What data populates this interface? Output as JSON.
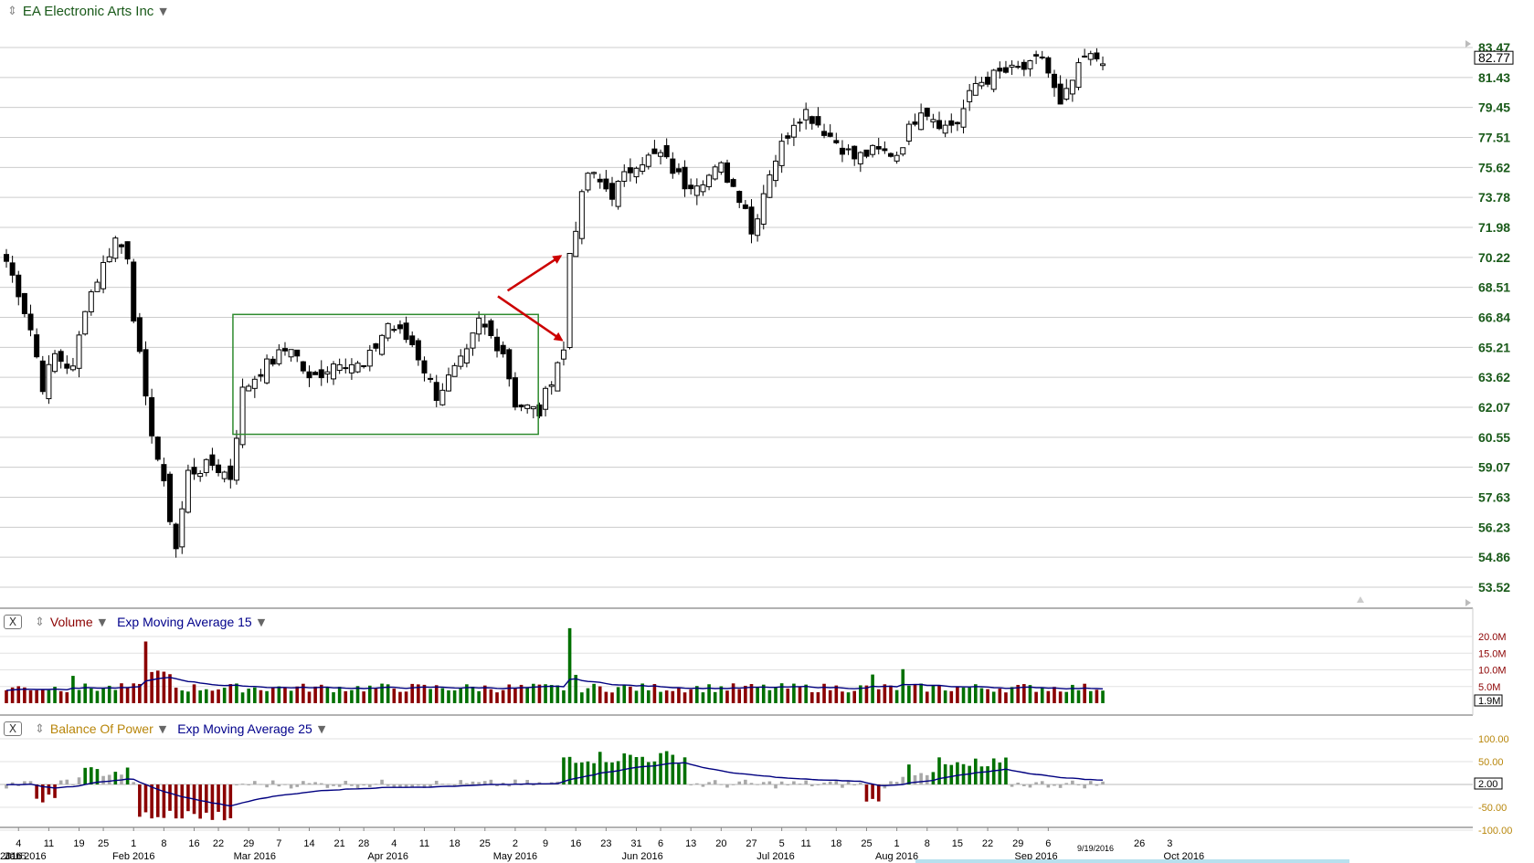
{
  "header": {
    "title": "EA Electronic Arts Inc"
  },
  "panels": {
    "volume": {
      "name": "Volume",
      "ema_label": "Exp Moving Average 15"
    },
    "bop": {
      "name": "Balance Of Power",
      "ema_label": "Exp Moving Average 25"
    }
  },
  "colors": {
    "up": "#ffffff",
    "down": "#000000",
    "vol_up": "#007000",
    "vol_down": "#8b0000",
    "bop_pos": "#007000",
    "bop_neg": "#8b0000",
    "bop_neutral": "#a8a8a8",
    "ema": "#000080",
    "box": "#2e8b2e",
    "arrow": "#cc0000",
    "grid": "#cccccc",
    "price_axis": "#1a5a1a",
    "vol_axis": "#8b0000",
    "bop_axis": "#b8860b"
  },
  "chart_data": {
    "type": "candlestick",
    "title": "EA Electronic Arts Inc",
    "price_axis": {
      "ticks": [
        "83.47",
        "81.43",
        "79.45",
        "77.51",
        "75.62",
        "73.78",
        "71.98",
        "70.22",
        "68.51",
        "66.84",
        "65.21",
        "63.62",
        "62.07",
        "60.55",
        "59.07",
        "57.63",
        "56.23",
        "54.86",
        "53.52"
      ],
      "last_price": "82.77",
      "ylim": [
        53.0,
        84.5
      ],
      "scale": "log"
    },
    "volume_axis": {
      "ticks": [
        "20.0M",
        "15.0M",
        "10.0M",
        "5.0M"
      ],
      "current": "1.9M"
    },
    "bop_axis": {
      "ticks": [
        "100.00",
        "50.00",
        "-50.00",
        "-100.00"
      ],
      "current": "2.00"
    },
    "x_axis": {
      "day_labels": [
        "4",
        "11",
        "19",
        "25",
        "1",
        "8",
        "16",
        "22",
        "29",
        "7",
        "14",
        "21",
        "28",
        "4",
        "11",
        "18",
        "25",
        "2",
        "9",
        "16",
        "23",
        "31",
        "6",
        "13",
        "20",
        "27",
        "5",
        "11",
        "18",
        "25",
        "1",
        "8",
        "15",
        "22",
        "29",
        "6",
        "26",
        "3"
      ],
      "month_labels": [
        "Jan 2016",
        "Feb 2016",
        "Mar 2016",
        "Apr 2016",
        "May 2016",
        "Jun 2016",
        "Jul 2016",
        "Aug 2016",
        "Sep 2016",
        "Oct 2016"
      ],
      "current_date": "9/19/2016",
      "first_label_stack": [
        "2016",
        "2015"
      ]
    },
    "consolidation_box": {
      "from": "2016-02-25",
      "to": "2016-05-04",
      "low": 60.7,
      "high": 67.0
    },
    "annotations": [
      {
        "type": "arrow",
        "points_to": "gap up breakout"
      },
      {
        "type": "arrow",
        "points_to": "close before gap"
      }
    ],
    "legend": "top-left"
  }
}
